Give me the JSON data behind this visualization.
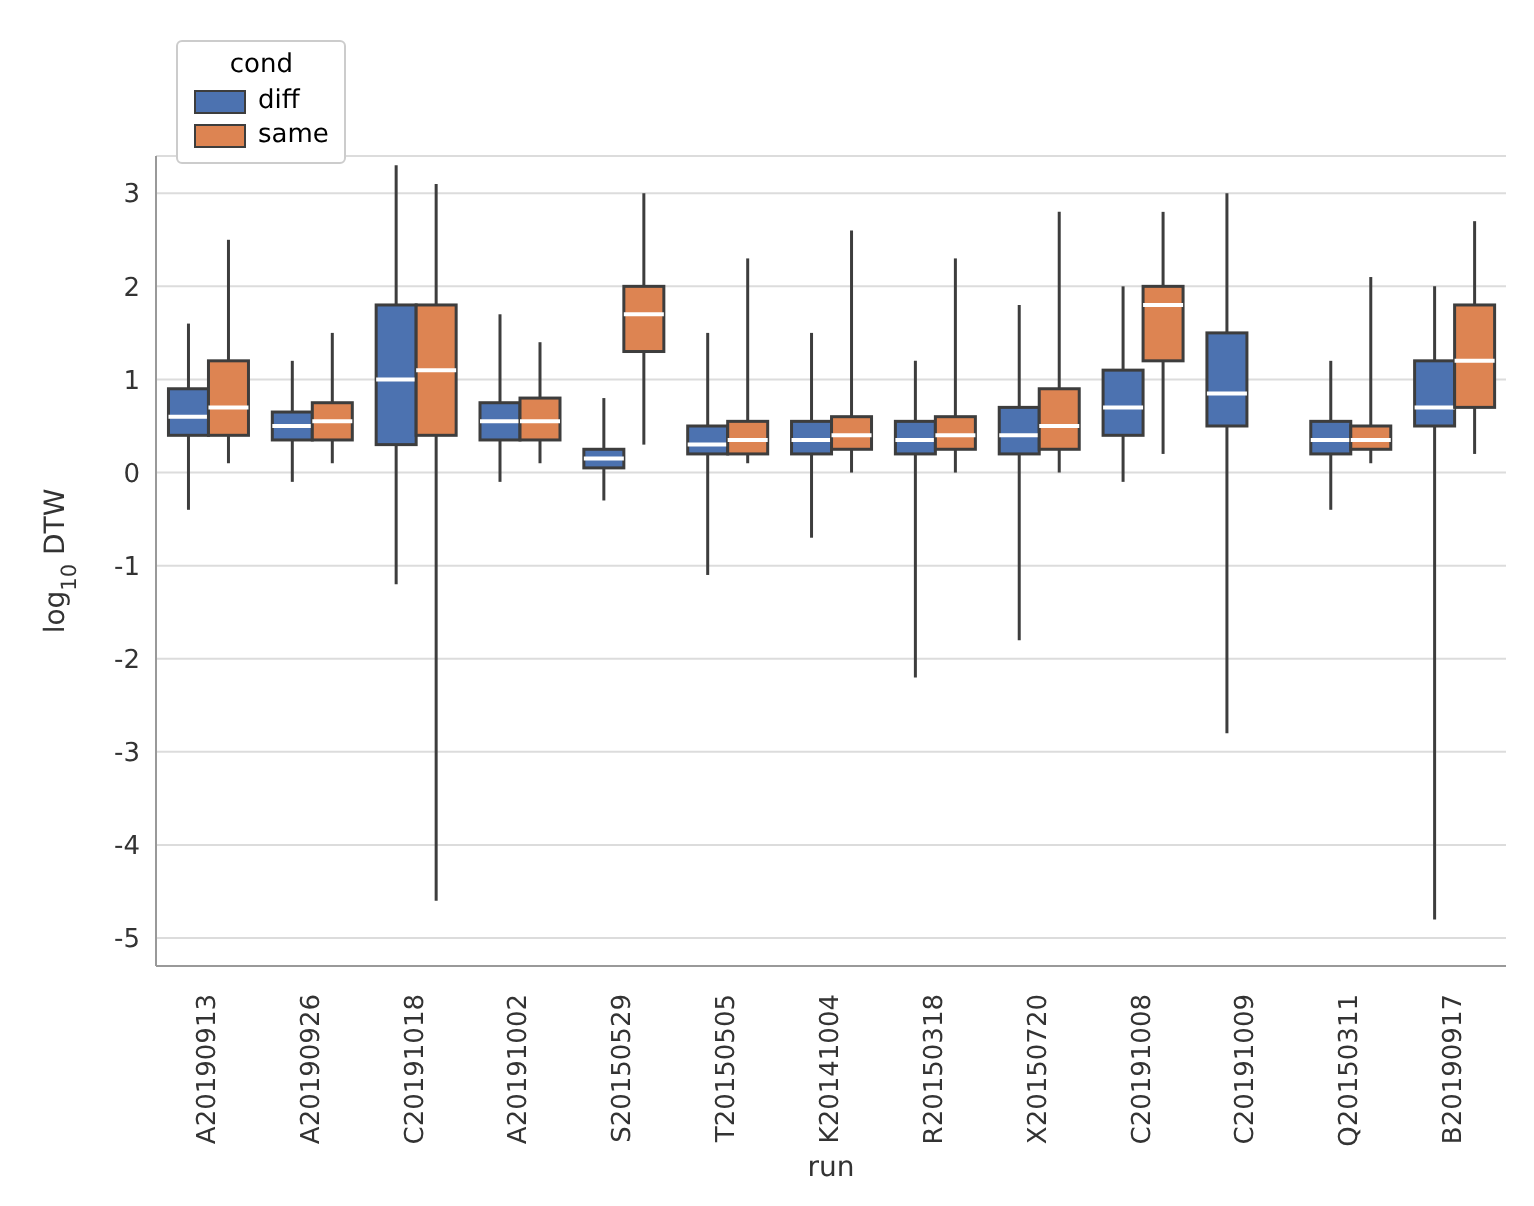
{
  "chart_data": {
    "type": "box",
    "xlabel": "run",
    "ylabel": "log$_{10}$ DTW",
    "legend_title": "cond",
    "legend": "top left",
    "grid": "y",
    "categories": [
      "A20190913",
      "A20190926",
      "C20191018",
      "A20191002",
      "S20150529",
      "T20150505",
      "K20141004",
      "R20150318",
      "X20150720",
      "C20191008",
      "C20191009",
      "Q20150311",
      "B20190917"
    ],
    "ylim": [
      -5.3,
      3.4
    ],
    "yticks": [
      -5,
      -4,
      -3,
      -2,
      -1,
      0,
      1,
      2,
      3
    ],
    "series": [
      {
        "name": "diff",
        "color": "#4c72b0",
        "boxes": [
          {
            "low": -0.4,
            "q1": 0.4,
            "median": 0.6,
            "q3": 0.9,
            "high": 1.6
          },
          {
            "low": -0.1,
            "q1": 0.35,
            "median": 0.5,
            "q3": 0.65,
            "high": 1.2
          },
          {
            "low": -1.2,
            "q1": 0.3,
            "median": 1.0,
            "q3": 1.8,
            "high": 3.3
          },
          {
            "low": -0.1,
            "q1": 0.35,
            "median": 0.55,
            "q3": 0.75,
            "high": 1.7
          },
          {
            "low": -0.3,
            "q1": 0.05,
            "median": 0.15,
            "q3": 0.25,
            "high": 0.8
          },
          {
            "low": -1.1,
            "q1": 0.2,
            "median": 0.3,
            "q3": 0.5,
            "high": 1.5
          },
          {
            "low": -0.7,
            "q1": 0.2,
            "median": 0.35,
            "q3": 0.55,
            "high": 1.5
          },
          {
            "low": -2.2,
            "q1": 0.2,
            "median": 0.35,
            "q3": 0.55,
            "high": 1.2
          },
          {
            "low": -1.8,
            "q1": 0.2,
            "median": 0.4,
            "q3": 0.7,
            "high": 1.8
          },
          {
            "low": -0.1,
            "q1": 0.4,
            "median": 0.7,
            "q3": 1.1,
            "high": 2.0
          },
          {
            "low": -2.8,
            "q1": 0.5,
            "median": 0.85,
            "q3": 1.5,
            "high": 3.0
          },
          {
            "low": -0.4,
            "q1": 0.2,
            "median": 0.35,
            "q3": 0.55,
            "high": 1.2
          },
          {
            "low": -4.8,
            "q1": 0.5,
            "median": 0.7,
            "q3": 1.2,
            "high": 2.0
          }
        ]
      },
      {
        "name": "same",
        "color": "#dd8452",
        "boxes": [
          {
            "low": 0.1,
            "q1": 0.4,
            "median": 0.7,
            "q3": 1.2,
            "high": 2.5
          },
          {
            "low": 0.1,
            "q1": 0.35,
            "median": 0.55,
            "q3": 0.75,
            "high": 1.5
          },
          {
            "low": -4.6,
            "q1": 0.4,
            "median": 1.1,
            "q3": 1.8,
            "high": 3.1
          },
          {
            "low": 0.1,
            "q1": 0.35,
            "median": 0.55,
            "q3": 0.8,
            "high": 1.4
          },
          {
            "low": 0.3,
            "q1": 1.3,
            "median": 1.7,
            "q3": 2.0,
            "high": 3.0
          },
          {
            "low": 0.1,
            "q1": 0.2,
            "median": 0.35,
            "q3": 0.55,
            "high": 2.3
          },
          {
            "low": 0.0,
            "q1": 0.25,
            "median": 0.4,
            "q3": 0.6,
            "high": 2.6
          },
          {
            "low": 0.0,
            "q1": 0.25,
            "median": 0.4,
            "q3": 0.6,
            "high": 2.3
          },
          {
            "low": 0.0,
            "q1": 0.25,
            "median": 0.5,
            "q3": 0.9,
            "high": 2.8
          },
          {
            "low": 0.2,
            "q1": 1.2,
            "median": 1.8,
            "q3": 2.0,
            "high": 2.8
          },
          null,
          {
            "low": 0.1,
            "q1": 0.25,
            "median": 0.35,
            "q3": 0.5,
            "high": 2.1
          },
          {
            "low": 0.2,
            "q1": 0.7,
            "median": 1.2,
            "q3": 1.8,
            "high": 2.7
          }
        ]
      }
    ]
  }
}
